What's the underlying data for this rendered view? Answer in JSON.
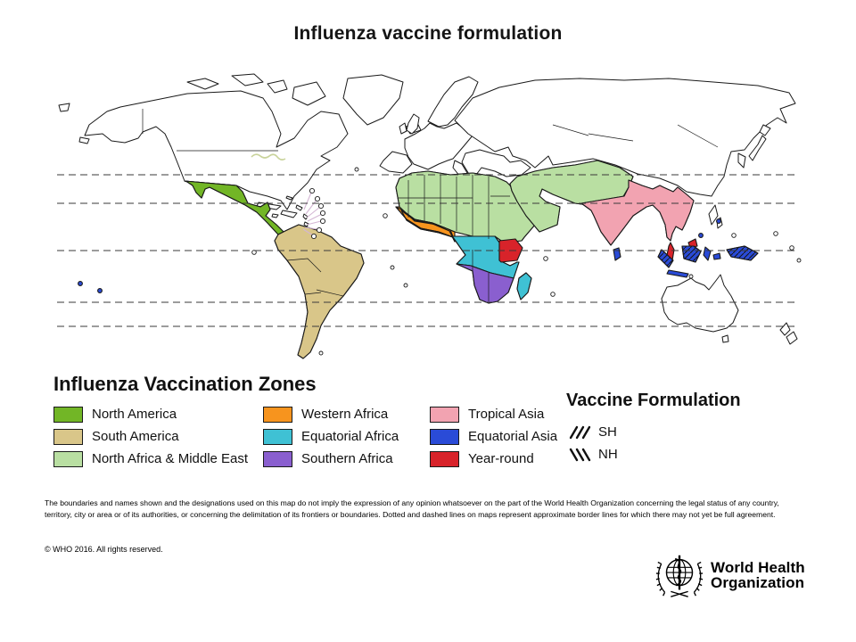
{
  "title": "Influenza vaccine formulation",
  "colors": {
    "north_america": "#72b626",
    "south_america": "#d9c689",
    "north_africa_middle_east": "#b9dfa2",
    "western_africa": "#f7941e",
    "equatorial_africa": "#3fc1d4",
    "southern_africa": "#8a5fcf",
    "tropical_asia": "#f2a3b1",
    "equatorial_asia": "#2a4bd7",
    "year_round": "#d8232a",
    "land": "#ffffff",
    "outline": "#1a1a1a",
    "leader_line": "#d4b6d4",
    "lake_outline": "#c9d39b",
    "latitude_line": "#3a3a3a"
  },
  "zones_legend": {
    "heading": "Influenza Vaccination Zones",
    "items": [
      {
        "label": "North America",
        "color": "north_america",
        "formulation": "NH"
      },
      {
        "label": "South America",
        "color": "south_america",
        "formulation": "SH"
      },
      {
        "label": "North Africa & Middle East",
        "color": "north_africa_middle_east",
        "formulation": "NH"
      },
      {
        "label": "Western Africa",
        "color": "western_africa",
        "formulation": "NH"
      },
      {
        "label": "Equatorial Africa",
        "color": "equatorial_africa",
        "formulation": "SH"
      },
      {
        "label": "Southern Africa",
        "color": "southern_africa",
        "formulation": "SH"
      },
      {
        "label": "Tropical Asia",
        "color": "tropical_asia",
        "formulation": "NH"
      },
      {
        "label": "Equatorial Asia",
        "color": "equatorial_asia",
        "formulation": "SH"
      },
      {
        "label": "Year-round",
        "color": "year_round",
        "formulation": "year-round"
      }
    ]
  },
  "formulation_legend": {
    "heading": "Vaccine Formulation",
    "items": [
      {
        "label": "SH",
        "hatch": "sh"
      },
      {
        "label": "NH",
        "hatch": "nh"
      }
    ]
  },
  "disclaimer": "The boundaries and names shown and the designations used on this map do not imply the expression of any opinion whatsoever on the part of the World Health Organization concerning the legal status of any country, territory, city or area or of its authorities, or concerning the delimitation of its frontiers or boundaries. Dotted and dashed lines on maps represent approximate border lines for which there may not yet be full agreement.",
  "copyright": "© WHO 2016. All rights reserved.",
  "logo": {
    "line1": "World Health",
    "line2": "Organization"
  }
}
